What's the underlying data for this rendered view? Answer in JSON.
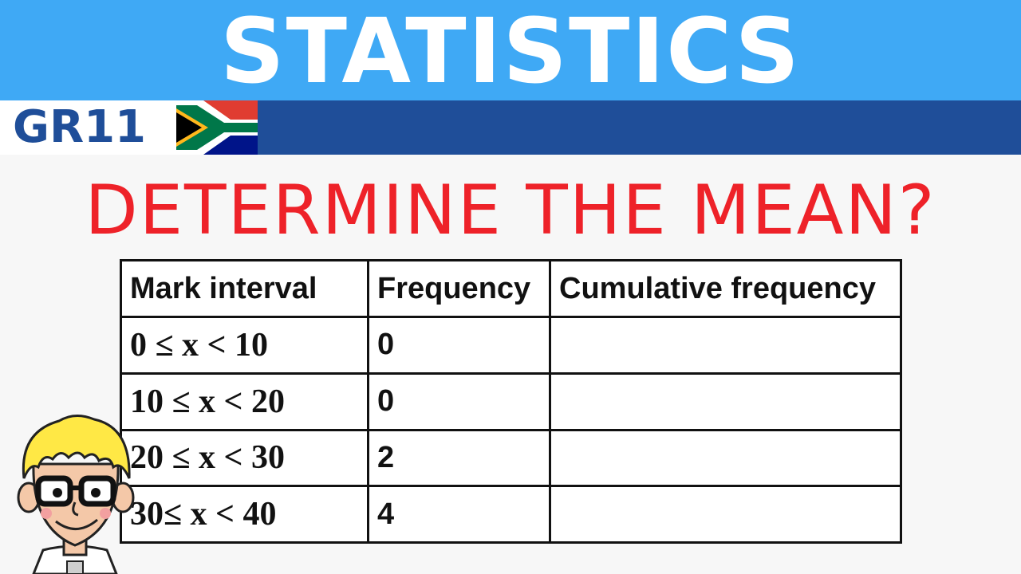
{
  "banner": {
    "title": "STATISTICS",
    "bg": "#3fa9f5"
  },
  "grade": {
    "label": "GR11",
    "bar_color": "#1f4e99",
    "flag_icon": "south-africa-flag-icon"
  },
  "question": {
    "text": "DETERMINE THE MEAN?",
    "color": "#ee2229"
  },
  "table": {
    "headers": [
      "Mark interval",
      "Frequency",
      "Cumulative frequency"
    ],
    "rows": [
      {
        "interval": "0 ≤ x < 10",
        "frequency": "0",
        "cumulative": ""
      },
      {
        "interval": "10 ≤ x < 20",
        "frequency": "0",
        "cumulative": ""
      },
      {
        "interval": "20 ≤ x < 30",
        "frequency": "2",
        "cumulative": ""
      },
      {
        "interval": "30≤ x < 40",
        "frequency": "4",
        "cumulative": ""
      }
    ]
  },
  "mascot": {
    "icon": "cartoon-boy-glasses-icon"
  }
}
